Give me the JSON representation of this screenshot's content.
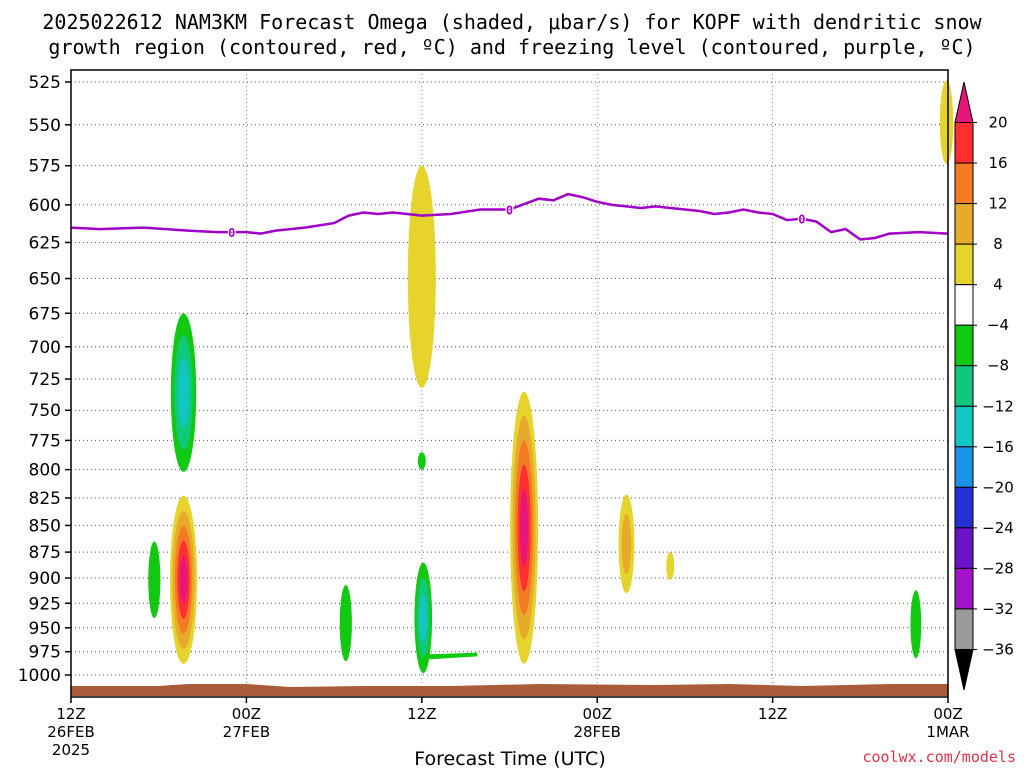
{
  "chart_data": {
    "type": "heatmap",
    "title_line1": "2025022612 NAM3KM Forecast Omega (shaded, μbar/s) for KOPF with dendritic snow",
    "title_line2": "growth region (contoured, red, ºC) and freezing level (contoured, purple, ºC)",
    "xlabel": "Forecast Time (UTC)",
    "credit": "coolwx.com/models",
    "y_axis": {
      "type": "pressure_hPa",
      "range": [
        1000,
        525
      ],
      "ticks": [
        "525",
        "550",
        "575",
        "600",
        "625",
        "650",
        "675",
        "700",
        "725",
        "750",
        "775",
        "800",
        "825",
        "850",
        "875",
        "900",
        "925",
        "950",
        "975",
        "1000"
      ]
    },
    "x_axis": {
      "range_hours": [
        0,
        60
      ],
      "ticks": [
        {
          "hour": 0,
          "line1": "12Z",
          "line2": "26FEB",
          "line3": "2025"
        },
        {
          "hour": 12,
          "line1": "00Z",
          "line2": "27FEB",
          "line3": ""
        },
        {
          "hour": 24,
          "line1": "12Z",
          "line2": "",
          "line3": ""
        },
        {
          "hour": 36,
          "line1": "00Z",
          "line2": "28FEB",
          "line3": ""
        },
        {
          "hour": 48,
          "line1": "12Z",
          "line2": "",
          "line3": ""
        },
        {
          "hour": 60,
          "line1": "00Z",
          "line2": "1MAR",
          "line3": ""
        }
      ]
    },
    "colorbar": {
      "levels": [
        "20",
        "16",
        "12",
        "8",
        "4",
        "−4",
        "−8",
        "−12",
        "−16",
        "−20",
        "−24",
        "−28",
        "−32",
        "−36"
      ],
      "colors_top_to_bottom": [
        "#e8157a",
        "#ff2f2f",
        "#f47a23",
        "#e6ab2a",
        "#e6d42c",
        "#ffffff",
        "#12c912",
        "#10c77a",
        "#12c6c2",
        "#1a93e6",
        "#2330d4",
        "#6a13c9",
        "#a013c9",
        "#9b9b9b",
        "#000000"
      ]
    },
    "freezing_level": {
      "color": "#a000c8",
      "label": "0",
      "points": [
        [
          0,
          615
        ],
        [
          2,
          616
        ],
        [
          5,
          615
        ],
        [
          8,
          617
        ],
        [
          10,
          618
        ],
        [
          12,
          618
        ],
        [
          13,
          619
        ],
        [
          14,
          617
        ],
        [
          16,
          615
        ],
        [
          18,
          612
        ],
        [
          19,
          607
        ],
        [
          20,
          605
        ],
        [
          21,
          606
        ],
        [
          22,
          605
        ],
        [
          23,
          606
        ],
        [
          24,
          607
        ],
        [
          26,
          606
        ],
        [
          28,
          603
        ],
        [
          30,
          603
        ],
        [
          32,
          596
        ],
        [
          33,
          597
        ],
        [
          34,
          593
        ],
        [
          35,
          595
        ],
        [
          36,
          598
        ],
        [
          37,
          600
        ],
        [
          38,
          601
        ],
        [
          39,
          602
        ],
        [
          40,
          601
        ],
        [
          41,
          602
        ],
        [
          42,
          603
        ],
        [
          43,
          604
        ],
        [
          44,
          606
        ],
        [
          45,
          605
        ],
        [
          46,
          603
        ],
        [
          47,
          605
        ],
        [
          48,
          606
        ],
        [
          49,
          610
        ],
        [
          50,
          609
        ],
        [
          51,
          611
        ],
        [
          52,
          618
        ],
        [
          53,
          616
        ],
        [
          54,
          623
        ],
        [
          55,
          622
        ],
        [
          56,
          619
        ],
        [
          58,
          618
        ],
        [
          60,
          619
        ]
      ],
      "label_hours": [
        11,
        30,
        50
      ]
    },
    "omega_features": [
      {
        "hour": 7.7,
        "p_top": 675,
        "p_bot": 802,
        "peak": -12
      },
      {
        "hour": 7.7,
        "p_top": 823,
        "p_bot": 988,
        "peak": 20
      },
      {
        "hour": 5.7,
        "p_top": 865,
        "p_bot": 940,
        "peak": -4
      },
      {
        "hour": 18.8,
        "p_top": 907,
        "p_bot": 985,
        "peak": -4
      },
      {
        "hour": 24.0,
        "p_top": 575,
        "p_bot": 732,
        "peak": 4
      },
      {
        "hour": 24.0,
        "p_top": 785,
        "p_bot": 800,
        "peak": -4
      },
      {
        "hour": 24.1,
        "p_top": 885,
        "p_bot": 998,
        "peak": -12
      },
      {
        "hour": 31.0,
        "p_top": 735,
        "p_bot": 988,
        "peak": 20
      },
      {
        "hour": 38.0,
        "p_top": 822,
        "p_bot": 915,
        "peak": 8
      },
      {
        "hour": 41.0,
        "p_top": 875,
        "p_bot": 902,
        "peak": 4
      },
      {
        "hour": 57.8,
        "p_top": 912,
        "p_bot": 982,
        "peak": -4
      },
      {
        "hour": 59.9,
        "p_top": 524,
        "p_bot": 574,
        "peak": 4
      }
    ]
  }
}
